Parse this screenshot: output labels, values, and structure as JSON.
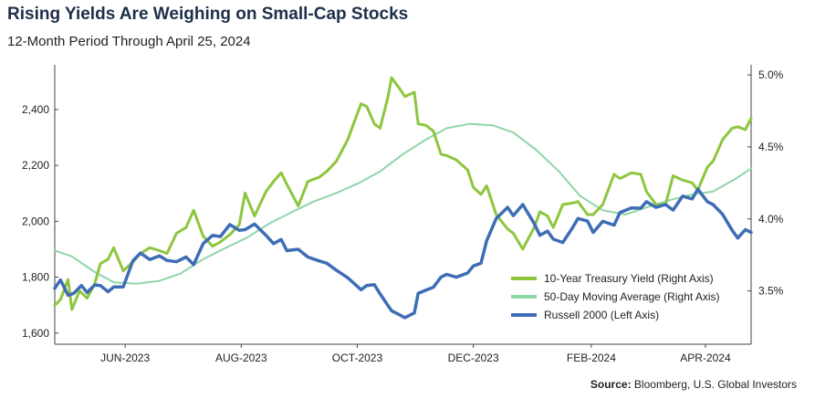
{
  "title": "Rising Yields Are Weighing on Small-Cap Stocks",
  "subtitle": "12-Month Period Through April 25, 2024",
  "source_label": "Source:",
  "source_text": "Bloomberg, U.S. Global Investors",
  "colors": {
    "treasury": "#8dc63f",
    "moving_average": "#8fd6a8",
    "russell": "#3e6db5"
  },
  "chart_data": {
    "type": "line",
    "x_start": "2023-04-25",
    "x_end": "2024-04-25",
    "x_tick_labels": [
      {
        "label": "JUN-2023",
        "date": "2023-06-01"
      },
      {
        "label": "AUG-2023",
        "date": "2023-08-01"
      },
      {
        "label": "OCT-2023",
        "date": "2023-10-01"
      },
      {
        "label": "DEC-2023",
        "date": "2023-12-01"
      },
      {
        "label": "FEB-2024",
        "date": "2024-02-01"
      },
      {
        "label": "APR-2024",
        "date": "2024-04-01"
      }
    ],
    "left_axis": {
      "ylim": [
        1560,
        2560
      ],
      "ticks": [
        {
          "label": "1,600",
          "value": 1600
        },
        {
          "label": "1,800",
          "value": 1800
        },
        {
          "label": "2,000",
          "value": 2000
        },
        {
          "label": "2,200",
          "value": 2200
        },
        {
          "label": "2,400",
          "value": 2400
        }
      ]
    },
    "right_axis": {
      "ylim": [
        3.13,
        5.07
      ],
      "ticks": [
        {
          "label": "3.5%",
          "value": 3.5
        },
        {
          "label": "4.0%",
          "value": 4.0
        },
        {
          "label": "4.5%",
          "value": 4.5
        },
        {
          "label": "5.0%",
          "value": 5.0
        }
      ]
    },
    "grid": false,
    "legend_position": "bottom-right",
    "series": [
      {
        "name": "10-Year Treasury Yield (Right Axis)",
        "axis": "right",
        "points": [
          [
            "2023-04-25",
            3.4
          ],
          [
            "2023-04-28",
            3.44
          ],
          [
            "2023-05-02",
            3.58
          ],
          [
            "2023-05-04",
            3.37
          ],
          [
            "2023-05-08",
            3.5
          ],
          [
            "2023-05-12",
            3.45
          ],
          [
            "2023-05-16",
            3.55
          ],
          [
            "2023-05-19",
            3.69
          ],
          [
            "2023-05-23",
            3.72
          ],
          [
            "2023-05-26",
            3.8
          ],
          [
            "2023-05-31",
            3.64
          ],
          [
            "2023-06-05",
            3.7
          ],
          [
            "2023-06-09",
            3.76
          ],
          [
            "2023-06-14",
            3.8
          ],
          [
            "2023-06-19",
            3.78
          ],
          [
            "2023-06-23",
            3.76
          ],
          [
            "2023-06-28",
            3.9
          ],
          [
            "2023-07-03",
            3.94
          ],
          [
            "2023-07-07",
            4.06
          ],
          [
            "2023-07-12",
            3.88
          ],
          [
            "2023-07-17",
            3.81
          ],
          [
            "2023-07-21",
            3.84
          ],
          [
            "2023-07-26",
            3.89
          ],
          [
            "2023-07-31",
            3.96
          ],
          [
            "2023-08-03",
            4.18
          ],
          [
            "2023-08-08",
            4.02
          ],
          [
            "2023-08-14",
            4.19
          ],
          [
            "2023-08-18",
            4.26
          ],
          [
            "2023-08-22",
            4.32
          ],
          [
            "2023-08-25",
            4.24
          ],
          [
            "2023-08-31",
            4.09
          ],
          [
            "2023-09-05",
            4.26
          ],
          [
            "2023-09-11",
            4.29
          ],
          [
            "2023-09-15",
            4.33
          ],
          [
            "2023-09-20",
            4.4
          ],
          [
            "2023-09-26",
            4.55
          ],
          [
            "2023-10-03",
            4.8
          ],
          [
            "2023-10-06",
            4.78
          ],
          [
            "2023-10-10",
            4.66
          ],
          [
            "2023-10-13",
            4.63
          ],
          [
            "2023-10-17",
            4.84
          ],
          [
            "2023-10-19",
            4.98
          ],
          [
            "2023-10-23",
            4.91
          ],
          [
            "2023-10-26",
            4.85
          ],
          [
            "2023-10-31",
            4.88
          ],
          [
            "2023-11-02",
            4.66
          ],
          [
            "2023-11-06",
            4.65
          ],
          [
            "2023-11-10",
            4.61
          ],
          [
            "2023-11-14",
            4.45
          ],
          [
            "2023-11-17",
            4.44
          ],
          [
            "2023-11-22",
            4.41
          ],
          [
            "2023-11-28",
            4.34
          ],
          [
            "2023-12-01",
            4.22
          ],
          [
            "2023-12-05",
            4.17
          ],
          [
            "2023-12-08",
            4.23
          ],
          [
            "2023-12-13",
            4.03
          ],
          [
            "2023-12-19",
            3.93
          ],
          [
            "2023-12-22",
            3.9
          ],
          [
            "2023-12-27",
            3.79
          ],
          [
            "2024-01-02",
            3.94
          ],
          [
            "2024-01-05",
            4.05
          ],
          [
            "2024-01-09",
            4.02
          ],
          [
            "2024-01-12",
            3.94
          ],
          [
            "2024-01-17",
            4.1
          ],
          [
            "2024-01-22",
            4.11
          ],
          [
            "2024-01-25",
            4.12
          ],
          [
            "2024-01-30",
            4.03
          ],
          [
            "2024-02-02",
            4.03
          ],
          [
            "2024-02-07",
            4.1
          ],
          [
            "2024-02-13",
            4.31
          ],
          [
            "2024-02-16",
            4.28
          ],
          [
            "2024-02-22",
            4.32
          ],
          [
            "2024-02-27",
            4.31
          ],
          [
            "2024-03-01",
            4.19
          ],
          [
            "2024-03-06",
            4.1
          ],
          [
            "2024-03-11",
            4.1
          ],
          [
            "2024-03-15",
            4.3
          ],
          [
            "2024-03-20",
            4.27
          ],
          [
            "2024-03-25",
            4.25
          ],
          [
            "2024-03-28",
            4.2
          ],
          [
            "2024-04-02",
            4.36
          ],
          [
            "2024-04-05",
            4.4
          ],
          [
            "2024-04-10",
            4.55
          ],
          [
            "2024-04-15",
            4.63
          ],
          [
            "2024-04-18",
            4.64
          ],
          [
            "2024-04-22",
            4.62
          ],
          [
            "2024-04-25",
            4.7
          ]
        ]
      },
      {
        "name": "50-Day Moving Average (Right Axis)",
        "axis": "right",
        "points": [
          [
            "2023-04-25",
            3.78
          ],
          [
            "2023-05-04",
            3.74
          ],
          [
            "2023-05-15",
            3.64
          ],
          [
            "2023-05-26",
            3.56
          ],
          [
            "2023-06-07",
            3.55
          ],
          [
            "2023-06-19",
            3.57
          ],
          [
            "2023-06-30",
            3.62
          ],
          [
            "2023-07-12",
            3.72
          ],
          [
            "2023-07-24",
            3.8
          ],
          [
            "2023-08-04",
            3.87
          ],
          [
            "2023-08-16",
            3.97
          ],
          [
            "2023-08-28",
            4.05
          ],
          [
            "2023-09-08",
            4.12
          ],
          [
            "2023-09-20",
            4.18
          ],
          [
            "2023-10-02",
            4.25
          ],
          [
            "2023-10-13",
            4.33
          ],
          [
            "2023-10-25",
            4.45
          ],
          [
            "2023-11-06",
            4.55
          ],
          [
            "2023-11-17",
            4.63
          ],
          [
            "2023-11-29",
            4.66
          ],
          [
            "2023-12-11",
            4.65
          ],
          [
            "2023-12-22",
            4.6
          ],
          [
            "2024-01-03",
            4.48
          ],
          [
            "2024-01-15",
            4.33
          ],
          [
            "2024-01-26",
            4.16
          ],
          [
            "2024-02-07",
            4.06
          ],
          [
            "2024-02-19",
            4.03
          ],
          [
            "2024-03-01",
            4.08
          ],
          [
            "2024-03-13",
            4.13
          ],
          [
            "2024-03-25",
            4.17
          ],
          [
            "2024-04-05",
            4.19
          ],
          [
            "2024-04-17",
            4.28
          ],
          [
            "2024-04-25",
            4.35
          ]
        ]
      },
      {
        "name": "Russell 2000 (Left Axis)",
        "axis": "left",
        "points": [
          [
            "2023-04-25",
            1760
          ],
          [
            "2023-04-28",
            1790
          ],
          [
            "2023-05-02",
            1735
          ],
          [
            "2023-05-05",
            1742
          ],
          [
            "2023-05-09",
            1770
          ],
          [
            "2023-05-12",
            1745
          ],
          [
            "2023-05-16",
            1772
          ],
          [
            "2023-05-19",
            1770
          ],
          [
            "2023-05-23",
            1748
          ],
          [
            "2023-05-26",
            1765
          ],
          [
            "2023-05-31",
            1765
          ],
          [
            "2023-06-05",
            1858
          ],
          [
            "2023-06-09",
            1886
          ],
          [
            "2023-06-14",
            1863
          ],
          [
            "2023-06-19",
            1876
          ],
          [
            "2023-06-23",
            1860
          ],
          [
            "2023-06-28",
            1855
          ],
          [
            "2023-07-03",
            1872
          ],
          [
            "2023-07-07",
            1845
          ],
          [
            "2023-07-12",
            1920
          ],
          [
            "2023-07-17",
            1950
          ],
          [
            "2023-07-21",
            1945
          ],
          [
            "2023-07-26",
            1988
          ],
          [
            "2023-07-31",
            1968
          ],
          [
            "2023-08-03",
            1970
          ],
          [
            "2023-08-08",
            1990
          ],
          [
            "2023-08-14",
            1950
          ],
          [
            "2023-08-18",
            1920
          ],
          [
            "2023-08-22",
            1935
          ],
          [
            "2023-08-25",
            1895
          ],
          [
            "2023-08-31",
            1900
          ],
          [
            "2023-09-05",
            1872
          ],
          [
            "2023-09-11",
            1858
          ],
          [
            "2023-09-15",
            1850
          ],
          [
            "2023-09-20",
            1825
          ],
          [
            "2023-09-26",
            1798
          ],
          [
            "2023-10-03",
            1755
          ],
          [
            "2023-10-06",
            1770
          ],
          [
            "2023-10-10",
            1773
          ],
          [
            "2023-10-13",
            1740
          ],
          [
            "2023-10-17",
            1700
          ],
          [
            "2023-10-19",
            1680
          ],
          [
            "2023-10-23",
            1666
          ],
          [
            "2023-10-26",
            1655
          ],
          [
            "2023-10-31",
            1672
          ],
          [
            "2023-11-02",
            1742
          ],
          [
            "2023-11-06",
            1753
          ],
          [
            "2023-11-10",
            1764
          ],
          [
            "2023-11-14",
            1800
          ],
          [
            "2023-11-17",
            1810
          ],
          [
            "2023-11-22",
            1800
          ],
          [
            "2023-11-28",
            1815
          ],
          [
            "2023-12-01",
            1840
          ],
          [
            "2023-12-05",
            1850
          ],
          [
            "2023-12-08",
            1930
          ],
          [
            "2023-12-13",
            2010
          ],
          [
            "2023-12-19",
            2050
          ],
          [
            "2023-12-22",
            2020
          ],
          [
            "2023-12-27",
            2060
          ],
          [
            "2024-01-02",
            1992
          ],
          [
            "2024-01-05",
            1950
          ],
          [
            "2024-01-09",
            1965
          ],
          [
            "2024-01-12",
            1936
          ],
          [
            "2024-01-17",
            1924
          ],
          [
            "2024-01-22",
            1975
          ],
          [
            "2024-01-25",
            2010
          ],
          [
            "2024-01-30",
            2001
          ],
          [
            "2024-02-02",
            1960
          ],
          [
            "2024-02-07",
            2000
          ],
          [
            "2024-02-13",
            1986
          ],
          [
            "2024-02-16",
            2031
          ],
          [
            "2024-02-22",
            2048
          ],
          [
            "2024-02-27",
            2047
          ],
          [
            "2024-03-01",
            2070
          ],
          [
            "2024-03-06",
            2050
          ],
          [
            "2024-03-11",
            2060
          ],
          [
            "2024-03-15",
            2040
          ],
          [
            "2024-03-20",
            2090
          ],
          [
            "2024-03-25",
            2080
          ],
          [
            "2024-03-28",
            2115
          ],
          [
            "2024-04-02",
            2070
          ],
          [
            "2024-04-05",
            2060
          ],
          [
            "2024-04-10",
            2025
          ],
          [
            "2024-04-15",
            1968
          ],
          [
            "2024-04-18",
            1940
          ],
          [
            "2024-04-22",
            1970
          ],
          [
            "2024-04-25",
            1960
          ]
        ]
      }
    ]
  }
}
